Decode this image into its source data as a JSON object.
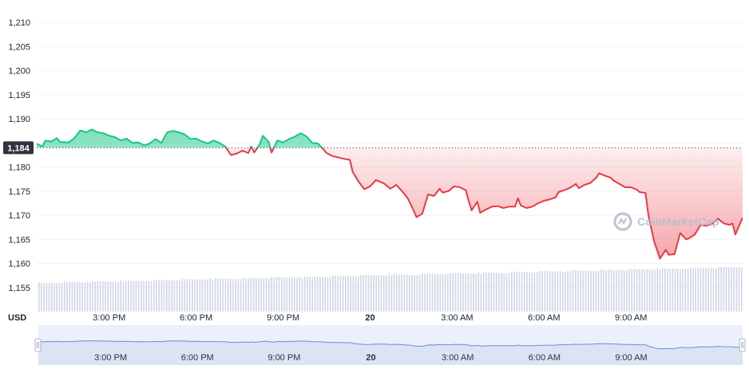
{
  "chart_data": {
    "type": "area",
    "axis_unit": "USD",
    "reference_value": 1184,
    "reference_label": "1,184",
    "ylim": [
      1150,
      1213
    ],
    "yticks": [
      {
        "value": 1155,
        "label": "1,155"
      },
      {
        "value": 1160,
        "label": "1,160"
      },
      {
        "value": 1165,
        "label": "1,165"
      },
      {
        "value": 1170,
        "label": "1,170"
      },
      {
        "value": 1175,
        "label": "1,175"
      },
      {
        "value": 1180,
        "label": "1,180"
      },
      {
        "value": 1185,
        "label": "1,185"
      },
      {
        "value": 1190,
        "label": "1,190"
      },
      {
        "value": 1195,
        "label": "1,195"
      },
      {
        "value": 1200,
        "label": "1,200"
      },
      {
        "value": 1205,
        "label": "1,205"
      },
      {
        "value": 1210,
        "label": "1,210"
      }
    ],
    "xlim": [
      12.5,
      36.85
    ],
    "xticks": [
      {
        "value": 15,
        "label": "3:00 PM",
        "bold": false
      },
      {
        "value": 18,
        "label": "6:00 PM",
        "bold": false
      },
      {
        "value": 21,
        "label": "9:00 PM",
        "bold": false
      },
      {
        "value": 24,
        "label": "20",
        "bold": true
      },
      {
        "value": 27,
        "label": "3:00 AM",
        "bold": false
      },
      {
        "value": 30,
        "label": "6:00 AM",
        "bold": false
      },
      {
        "value": 33,
        "label": "9:00 AM",
        "bold": false
      }
    ],
    "grid": true,
    "colors": {
      "up": "#16c784",
      "down": "#ea3943",
      "volume": "#cfd6e4",
      "navigator": "#6f8bd9",
      "reference": "#30333d"
    },
    "series": [
      {
        "price": [
          [
            12.5,
            1184.8
          ],
          [
            12.7,
            1184.3
          ],
          [
            12.8,
            1185.5
          ],
          [
            13.0,
            1185.3
          ],
          [
            13.2,
            1186.0
          ],
          [
            13.3,
            1185.2
          ],
          [
            13.6,
            1185.1
          ],
          [
            13.8,
            1186.0
          ],
          [
            14.0,
            1187.6
          ],
          [
            14.2,
            1187.2
          ],
          [
            14.4,
            1187.8
          ],
          [
            14.6,
            1187.2
          ],
          [
            14.8,
            1187.0
          ],
          [
            15.0,
            1186.5
          ],
          [
            15.2,
            1186.2
          ],
          [
            15.4,
            1185.5
          ],
          [
            15.6,
            1185.9
          ],
          [
            15.8,
            1185.0
          ],
          [
            16.0,
            1185.1
          ],
          [
            16.2,
            1184.5
          ],
          [
            16.4,
            1184.9
          ],
          [
            16.6,
            1185.8
          ],
          [
            16.8,
            1185.0
          ],
          [
            17.0,
            1187.2
          ],
          [
            17.2,
            1187.5
          ],
          [
            17.4,
            1187.2
          ],
          [
            17.6,
            1186.8
          ],
          [
            17.8,
            1185.8
          ],
          [
            18.0,
            1185.9
          ],
          [
            18.2,
            1185.3
          ],
          [
            18.4,
            1184.9
          ],
          [
            18.6,
            1185.5
          ],
          [
            18.8,
            1185.0
          ],
          [
            19.0,
            1184.3
          ],
          [
            19.2,
            1182.5
          ],
          [
            19.4,
            1182.8
          ],
          [
            19.6,
            1183.4
          ],
          [
            19.8,
            1182.9
          ],
          [
            19.9,
            1184.3
          ],
          [
            20.0,
            1183.0
          ],
          [
            20.2,
            1184.8
          ],
          [
            20.3,
            1186.5
          ],
          [
            20.5,
            1185.2
          ],
          [
            20.6,
            1183.0
          ],
          [
            20.8,
            1185.5
          ],
          [
            21.0,
            1185.1
          ],
          [
            21.2,
            1185.8
          ],
          [
            21.4,
            1186.3
          ],
          [
            21.6,
            1187.0
          ],
          [
            21.8,
            1186.4
          ],
          [
            22.0,
            1185.0
          ],
          [
            22.2,
            1184.9
          ],
          [
            22.4,
            1183.6
          ],
          [
            22.5,
            1182.9
          ],
          [
            22.7,
            1182.3
          ],
          [
            22.9,
            1182.0
          ],
          [
            23.1,
            1181.7
          ],
          [
            23.3,
            1181.5
          ],
          [
            23.4,
            1179.0
          ],
          [
            23.6,
            1177.0
          ],
          [
            23.8,
            1175.4
          ],
          [
            24.0,
            1176.0
          ],
          [
            24.2,
            1177.3
          ],
          [
            24.4,
            1176.8
          ],
          [
            24.5,
            1176.5
          ],
          [
            24.7,
            1175.5
          ],
          [
            24.9,
            1176.3
          ],
          [
            25.1,
            1175.0
          ],
          [
            25.3,
            1173.5
          ],
          [
            25.5,
            1171.0
          ],
          [
            25.6,
            1169.6
          ],
          [
            25.8,
            1170.3
          ],
          [
            26.0,
            1174.3
          ],
          [
            26.2,
            1174.0
          ],
          [
            26.4,
            1175.5
          ],
          [
            26.5,
            1174.7
          ],
          [
            26.7,
            1175.0
          ],
          [
            26.9,
            1176.0
          ],
          [
            27.1,
            1175.8
          ],
          [
            27.3,
            1175.2
          ],
          [
            27.4,
            1173.0
          ],
          [
            27.5,
            1171.0
          ],
          [
            27.7,
            1172.8
          ],
          [
            27.8,
            1170.5
          ],
          [
            28.0,
            1171.2
          ],
          [
            28.2,
            1171.8
          ],
          [
            28.4,
            1171.9
          ],
          [
            28.6,
            1171.5
          ],
          [
            28.8,
            1171.8
          ],
          [
            29.0,
            1171.8
          ],
          [
            29.1,
            1173.5
          ],
          [
            29.2,
            1172.0
          ],
          [
            29.4,
            1171.5
          ],
          [
            29.6,
            1171.8
          ],
          [
            29.8,
            1172.5
          ],
          [
            30.0,
            1173.0
          ],
          [
            30.2,
            1173.3
          ],
          [
            30.4,
            1173.7
          ],
          [
            30.5,
            1174.8
          ],
          [
            30.7,
            1175.2
          ],
          [
            30.9,
            1175.7
          ],
          [
            31.1,
            1176.5
          ],
          [
            31.2,
            1175.6
          ],
          [
            31.4,
            1176.3
          ],
          [
            31.6,
            1176.7
          ],
          [
            31.8,
            1177.8
          ],
          [
            31.9,
            1178.7
          ],
          [
            32.1,
            1178.2
          ],
          [
            32.3,
            1177.8
          ],
          [
            32.4,
            1177.2
          ],
          [
            32.6,
            1176.5
          ],
          [
            32.8,
            1175.8
          ],
          [
            33.0,
            1175.8
          ],
          [
            33.2,
            1175.3
          ],
          [
            33.3,
            1174.8
          ],
          [
            33.5,
            1174.6
          ],
          [
            33.6,
            1170.0
          ],
          [
            33.8,
            1164.5
          ],
          [
            34.0,
            1161.0
          ],
          [
            34.2,
            1162.8
          ],
          [
            34.3,
            1161.8
          ],
          [
            34.5,
            1161.9
          ],
          [
            34.7,
            1166.3
          ],
          [
            34.9,
            1165.0
          ],
          [
            35.0,
            1165.2
          ],
          [
            35.2,
            1166.0
          ],
          [
            35.4,
            1168.0
          ],
          [
            35.6,
            1167.8
          ],
          [
            35.8,
            1168.2
          ],
          [
            36.0,
            1169.3
          ],
          [
            36.2,
            1168.3
          ],
          [
            36.4,
            1168.0
          ],
          [
            36.5,
            1168.3
          ],
          [
            36.6,
            1166.0
          ],
          [
            36.85,
            1169.5
          ]
        ]
      }
    ]
  },
  "watermark": {
    "text": "CoinMarketCap"
  }
}
